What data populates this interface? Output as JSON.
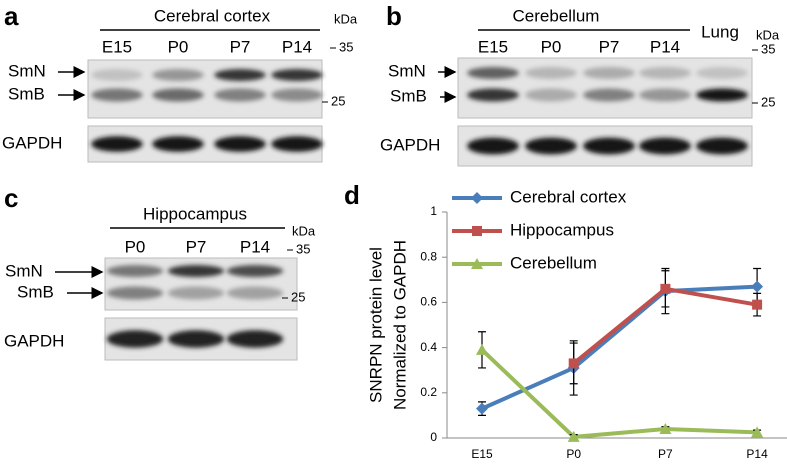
{
  "panels": {
    "a": {
      "letter": "a",
      "title": "Cerebral cortex",
      "lanes": [
        "E15",
        "P0",
        "P7",
        "P14"
      ],
      "kda": "kDa",
      "markers": [
        "35",
        "25"
      ],
      "bands": [
        "SmN",
        "SmB"
      ],
      "loading": "GAPDH"
    },
    "b": {
      "letter": "b",
      "title": "Cerebellum",
      "lanes": [
        "E15",
        "P0",
        "P7",
        "P14"
      ],
      "extra_lane": "Lung",
      "kda": "kDa",
      "markers": [
        "35",
        "25"
      ],
      "bands": [
        "SmN",
        "SmB"
      ],
      "loading": "GAPDH"
    },
    "c": {
      "letter": "c",
      "title": "Hippocampus",
      "lanes": [
        "P0",
        "P7",
        "P14"
      ],
      "kda": "kDa",
      "markers": [
        "35",
        "25"
      ],
      "bands": [
        "SmN",
        "SmB"
      ],
      "loading": "GAPDH"
    }
  },
  "chart_data": {
    "letter": "d",
    "type": "line",
    "ylabel": [
      "SNRPN protein level",
      "Normalized to GAPDH"
    ],
    "categories": [
      "E15",
      "P0",
      "P7",
      "P14"
    ],
    "ylim": [
      0,
      1
    ],
    "yticks": [
      0,
      0.2,
      0.4,
      0.6,
      0.8,
      1
    ],
    "series": [
      {
        "name": "Cerebral cortex",
        "color": "#4a7ebb",
        "marker": "diamond",
        "values": [
          0.13,
          0.31,
          0.65,
          0.67
        ],
        "errors": [
          0.03,
          0.12,
          0.1,
          0.08
        ]
      },
      {
        "name": "Hippocampus",
        "color": "#c0504d",
        "marker": "square",
        "values": [
          null,
          0.33,
          0.66,
          0.59
        ],
        "errors": [
          null,
          0.09,
          0.08,
          0.05
        ]
      },
      {
        "name": "Cerebellum",
        "color": "#9bbb59",
        "marker": "triangle",
        "values": [
          0.39,
          0.005,
          0.04,
          0.025
        ],
        "errors": [
          0.08,
          0.01,
          0.01,
          0.01
        ]
      }
    ]
  }
}
